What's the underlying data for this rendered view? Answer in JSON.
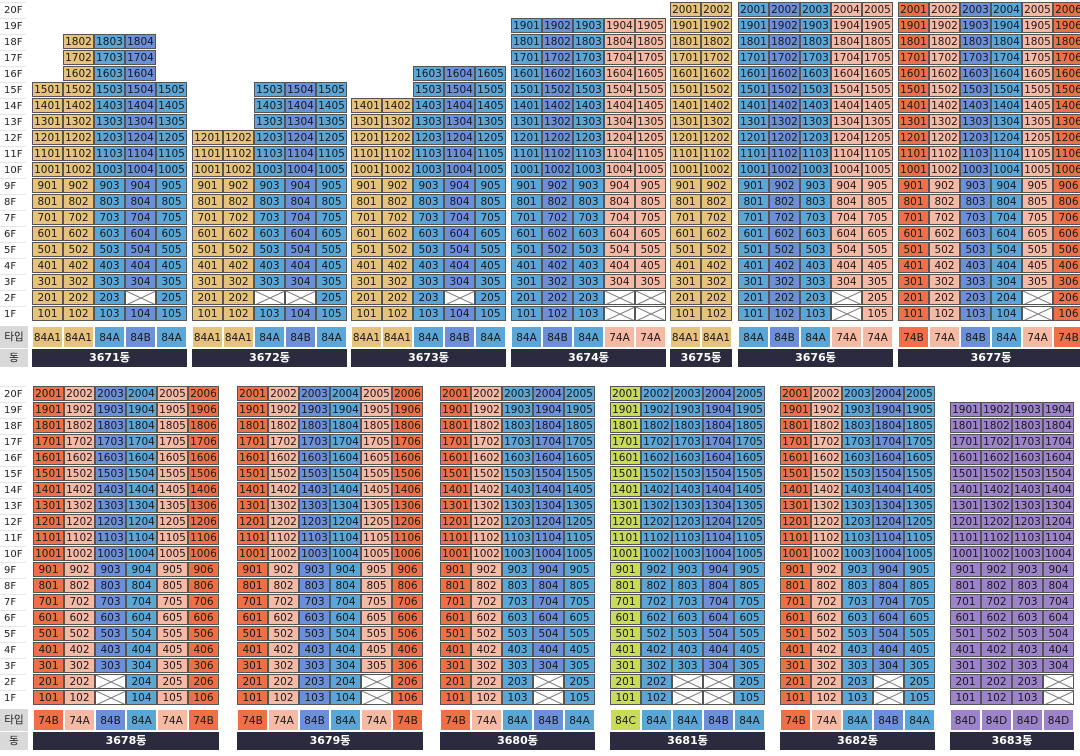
{
  "labels": {
    "type": "타입",
    "dong": "동",
    "floors": [
      "20F",
      "19F",
      "18F",
      "17F",
      "16F",
      "15F",
      "14F",
      "13F",
      "12F",
      "11F",
      "10F",
      "9F",
      "8F",
      "7F",
      "6F",
      "5F",
      "4F",
      "3F",
      "2F",
      "1F"
    ]
  },
  "colors": {
    "84A1": "#e7c27a",
    "84A": "#5aa6d6",
    "84B": "#6b8fd8",
    "74A": "#f6b9a3",
    "74B": "#ef7046",
    "84C": "#c8dc5a",
    "84D": "#9d83c9"
  },
  "buildings": [
    {
      "name": "3671동",
      "row": 0,
      "maxFloor": [
        15,
        18,
        18,
        18,
        15
      ],
      "types": [
        "84A1",
        "84A1",
        "84A",
        "84B",
        "84A"
      ],
      "empty": [
        [
          2,
          3
        ]
      ],
      "missing1F": []
    },
    {
      "name": "3672동",
      "row": 0,
      "maxFloor": [
        12,
        12,
        15,
        15,
        15
      ],
      "types": [
        "84A1",
        "84A1",
        "84A",
        "84B",
        "84A"
      ],
      "empty": [
        [
          2,
          2
        ],
        [
          2,
          3
        ]
      ],
      "missing1F": []
    },
    {
      "name": "3673동",
      "row": 0,
      "maxFloor": [
        14,
        14,
        16,
        16,
        16
      ],
      "types": [
        "84A1",
        "84A1",
        "84A",
        "84B",
        "84A"
      ],
      "empty": [
        [
          2,
          3
        ]
      ],
      "missing1F": []
    },
    {
      "name": "3674동",
      "row": 0,
      "maxFloor": [
        19,
        19,
        19,
        19,
        19
      ],
      "types": [
        "84A",
        "84B",
        "84A",
        "74A",
        "74A"
      ],
      "empty": [
        [
          2,
          3
        ],
        [
          2,
          4
        ],
        [
          1,
          3
        ],
        [
          1,
          4
        ]
      ],
      "missing1F": []
    },
    {
      "name": "3675동",
      "row": 0,
      "maxFloor": [
        20,
        20
      ],
      "types": [
        "84A1",
        "84A1"
      ],
      "empty": [],
      "missing1F": []
    },
    {
      "name": "3676동",
      "row": 0,
      "maxFloor": [
        20,
        20,
        20,
        20,
        20
      ],
      "types": [
        "84A",
        "84B",
        "84A",
        "74A",
        "74A"
      ],
      "empty": [
        [
          2,
          3
        ],
        [
          1,
          3
        ]
      ],
      "missing1F": []
    },
    {
      "name": "3677동",
      "row": 0,
      "maxFloor": [
        20,
        20,
        20,
        20,
        20,
        20
      ],
      "types": [
        "74B",
        "74A",
        "84B",
        "84A",
        "74A",
        "74B"
      ],
      "empty": [
        [
          2,
          4
        ],
        [
          1,
          4
        ]
      ],
      "missing1F": []
    },
    {
      "name": "3678동",
      "row": 1,
      "maxFloor": [
        20,
        20,
        20,
        20,
        20,
        20
      ],
      "types": [
        "74B",
        "74A",
        "84B",
        "84A",
        "74A",
        "74B"
      ],
      "empty": [
        [
          2,
          2
        ],
        [
          1,
          2
        ]
      ],
      "missing1F": []
    },
    {
      "name": "3679동",
      "row": 1,
      "maxFloor": [
        20,
        20,
        20,
        20,
        20,
        20
      ],
      "types": [
        "74B",
        "74A",
        "84B",
        "84A",
        "74A",
        "74B"
      ],
      "empty": [
        [
          2,
          4
        ],
        [
          1,
          4
        ]
      ],
      "missing1F": []
    },
    {
      "name": "3680동",
      "row": 1,
      "maxFloor": [
        20,
        20,
        20,
        20,
        20
      ],
      "types": [
        "74B",
        "74A",
        "84A",
        "84B",
        "84A"
      ],
      "empty": [
        [
          2,
          3
        ],
        [
          1,
          3
        ]
      ],
      "missing1F": []
    },
    {
      "name": "3681동",
      "row": 1,
      "maxFloor": [
        20,
        20,
        20,
        20,
        20
      ],
      "types": [
        "84C",
        "84A",
        "84A",
        "84B",
        "84A"
      ],
      "empty": [
        [
          2,
          2
        ],
        [
          2,
          3
        ],
        [
          1,
          2
        ],
        [
          1,
          3
        ]
      ],
      "missing1F": []
    },
    {
      "name": "3682동",
      "row": 1,
      "maxFloor": [
        20,
        20,
        20,
        20,
        20
      ],
      "types": [
        "74B",
        "74A",
        "84A",
        "84B",
        "84A"
      ],
      "empty": [
        [
          2,
          3
        ],
        [
          1,
          3
        ]
      ],
      "missing1F": []
    },
    {
      "name": "3683동",
      "row": 1,
      "maxFloor": [
        19,
        19,
        19,
        19
      ],
      "types": [
        "84D",
        "84D",
        "84D",
        "84D"
      ],
      "empty": [
        [
          2,
          3
        ],
        [
          1,
          3
        ]
      ],
      "missing1F": []
    }
  ]
}
